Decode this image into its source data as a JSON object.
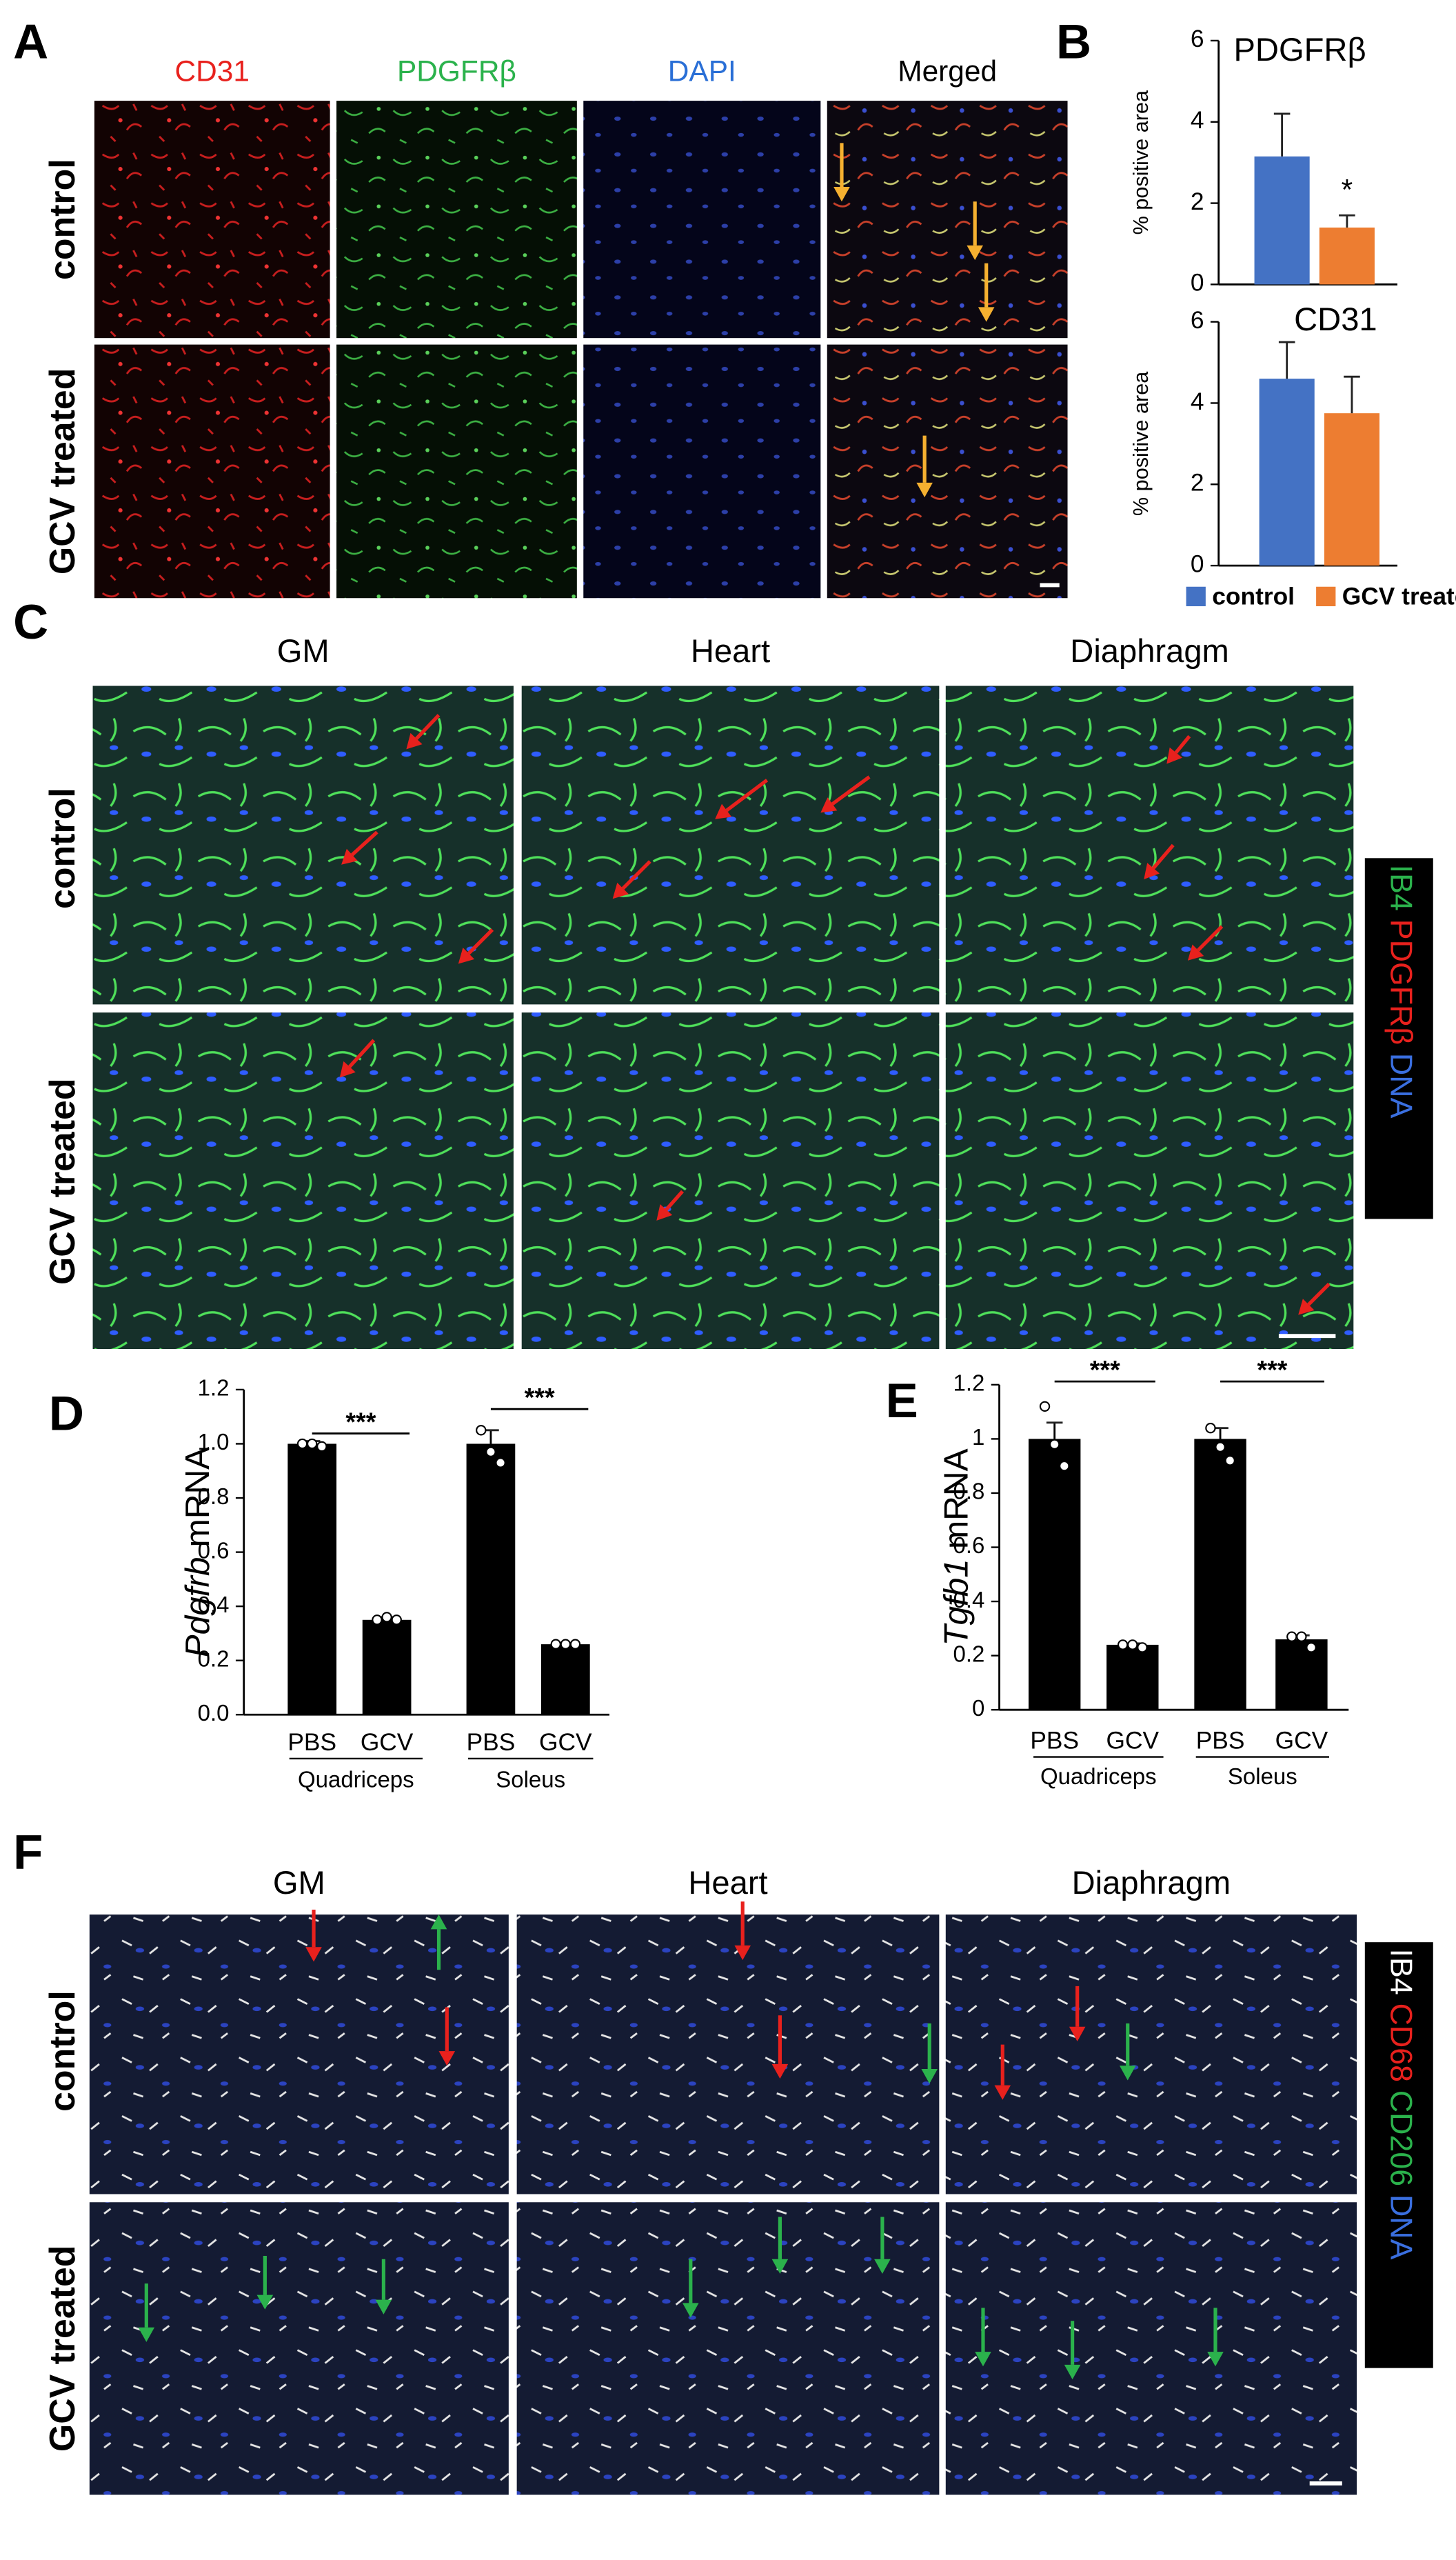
{
  "panels": {
    "A": {
      "letter": "A",
      "columns": [
        "CD31",
        "PDGFRβ",
        "DAPI",
        "Merged"
      ],
      "rows": [
        "control",
        "GCV treated"
      ]
    },
    "C": {
      "letter": "C",
      "columns": [
        "GM",
        "Heart",
        "Diaphragm"
      ],
      "rows": [
        "control",
        "GCV treated"
      ],
      "legend": [
        "IB4",
        "PDGFRβ",
        "DNA"
      ]
    },
    "F": {
      "letter": "F",
      "columns": [
        "GM",
        "Heart",
        "Diaphragm"
      ],
      "rows": [
        "control",
        "GCV treated"
      ],
      "legend": [
        "IB4",
        "CD68",
        "CD206",
        "DNA"
      ]
    }
  },
  "chart_data": [
    {
      "type": "bar",
      "panel": "B",
      "title": "PDGFRβ",
      "ylabel": "% positive area",
      "series": [
        {
          "color": "#4472c4",
          "values": [
            3.15
          ],
          "errors": [
            1.05
          ]
        },
        {
          "color": "#ed7d31",
          "values": [
            1.4
          ],
          "errors": [
            0.3
          ]
        }
      ],
      "significance": "*",
      "ylim": [
        0,
        6
      ],
      "yticks": [
        0,
        2,
        4,
        6
      ]
    },
    {
      "type": "bar",
      "title": "CD31",
      "ylabel": "% positive area",
      "series": [
        {
          "name": "control",
          "color": "#4472c4",
          "values": [
            4.6
          ],
          "errors": [
            0.9
          ]
        },
        {
          "name": "GCV treated",
          "color": "#ed7d31",
          "values": [
            3.75
          ],
          "errors": [
            0.9
          ]
        }
      ],
      "ylim": [
        0,
        6
      ],
      "yticks": [
        0,
        2,
        4,
        6
      ]
    },
    {
      "type": "bar",
      "panel": "D",
      "ylabel": {
        "gene": "Pdgfrb",
        "unit": "mRNA"
      },
      "categories": [
        "PBS",
        "GCV",
        "PBS",
        "GCV"
      ],
      "groups": [
        "Quadriceps",
        "Soleus"
      ],
      "values": [
        1.0,
        0.35,
        1.0,
        0.26
      ],
      "errors": [
        0.01,
        0.01,
        0.05,
        0.005
      ],
      "points": [
        [
          1.0,
          1.0,
          0.99
        ],
        [
          0.35,
          0.36,
          0.35
        ],
        [
          1.05,
          0.97,
          0.93
        ],
        [
          0.26,
          0.26,
          0.26
        ]
      ],
      "significance": [
        "***",
        "***"
      ],
      "color": "#000000",
      "ylim": [
        0,
        1.2
      ],
      "yticks": [
        {
          "value": 0,
          "label": "0.0"
        },
        0.2,
        0.4,
        0.6,
        0.8,
        {
          "value": 1,
          "label": "1.0"
        },
        1.2
      ]
    },
    {
      "type": "bar",
      "panel": "E",
      "ylabel": {
        "gene": "Tgfb1",
        "unit": "mRNA"
      },
      "categories": [
        "PBS",
        "GCV",
        "PBS",
        "GCV"
      ],
      "groups": [
        "Quadriceps",
        "Soleus"
      ],
      "values": [
        1.0,
        0.24,
        1.0,
        0.26
      ],
      "errors": [
        0.06,
        0.005,
        0.04,
        0.015
      ],
      "points": [
        [
          1.12,
          0.98,
          0.9
        ],
        [
          0.24,
          0.24,
          0.23
        ],
        [
          1.04,
          0.97,
          0.92
        ],
        [
          0.27,
          0.27,
          0.23
        ]
      ],
      "significance": [
        "***",
        "***"
      ],
      "color": "#000000",
      "ylim": [
        0,
        1.2
      ],
      "yticks": [
        0,
        0.2,
        0.4,
        0.6,
        0.8,
        1,
        1.2
      ]
    }
  ]
}
